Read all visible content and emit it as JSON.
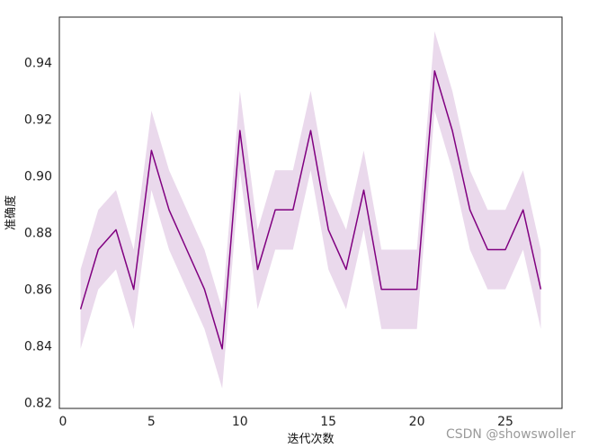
{
  "chart_data": {
    "type": "line",
    "title": "",
    "xlabel": "迭代次数",
    "ylabel": "准确度",
    "xlim": [
      -0.2,
      28.2
    ],
    "ylim": [
      0.818,
      0.956
    ],
    "xticks": [
      0,
      5,
      10,
      15,
      20,
      25
    ],
    "yticks": [
      0.82,
      0.84,
      0.86,
      0.88,
      0.9,
      0.92,
      0.94
    ],
    "ytick_labels": [
      "0.82",
      "0.84",
      "0.86",
      "0.88",
      "0.90",
      "0.92",
      "0.94"
    ],
    "grid": false,
    "legend": "none",
    "series": [
      {
        "color": "#800080",
        "band_color": "#dcc0e0",
        "x": [
          1,
          2,
          3,
          4,
          5,
          6,
          7,
          8,
          9,
          10,
          11,
          12,
          13,
          14,
          15,
          16,
          17,
          18,
          19,
          20,
          21,
          22,
          23,
          24,
          25,
          26,
          27
        ],
        "y": [
          0.853,
          0.874,
          0.881,
          0.86,
          0.909,
          0.888,
          0.874,
          0.86,
          0.839,
          0.916,
          0.867,
          0.888,
          0.888,
          0.916,
          0.881,
          0.867,
          0.895,
          0.86,
          0.86,
          0.86,
          0.937,
          0.916,
          0.888,
          0.874,
          0.874,
          0.888,
          0.86
        ],
        "lower": [
          0.839,
          0.86,
          0.867,
          0.846,
          0.895,
          0.874,
          0.86,
          0.846,
          0.825,
          0.902,
          0.853,
          0.874,
          0.874,
          0.902,
          0.867,
          0.853,
          0.881,
          0.846,
          0.846,
          0.846,
          0.923,
          0.902,
          0.874,
          0.86,
          0.86,
          0.874,
          0.846
        ],
        "upper": [
          0.867,
          0.888,
          0.895,
          0.874,
          0.923,
          0.902,
          0.888,
          0.874,
          0.853,
          0.93,
          0.881,
          0.902,
          0.902,
          0.93,
          0.895,
          0.881,
          0.909,
          0.874,
          0.874,
          0.874,
          0.951,
          0.93,
          0.902,
          0.888,
          0.888,
          0.902,
          0.874
        ]
      }
    ]
  },
  "watermark": "CSDN @showswoller"
}
